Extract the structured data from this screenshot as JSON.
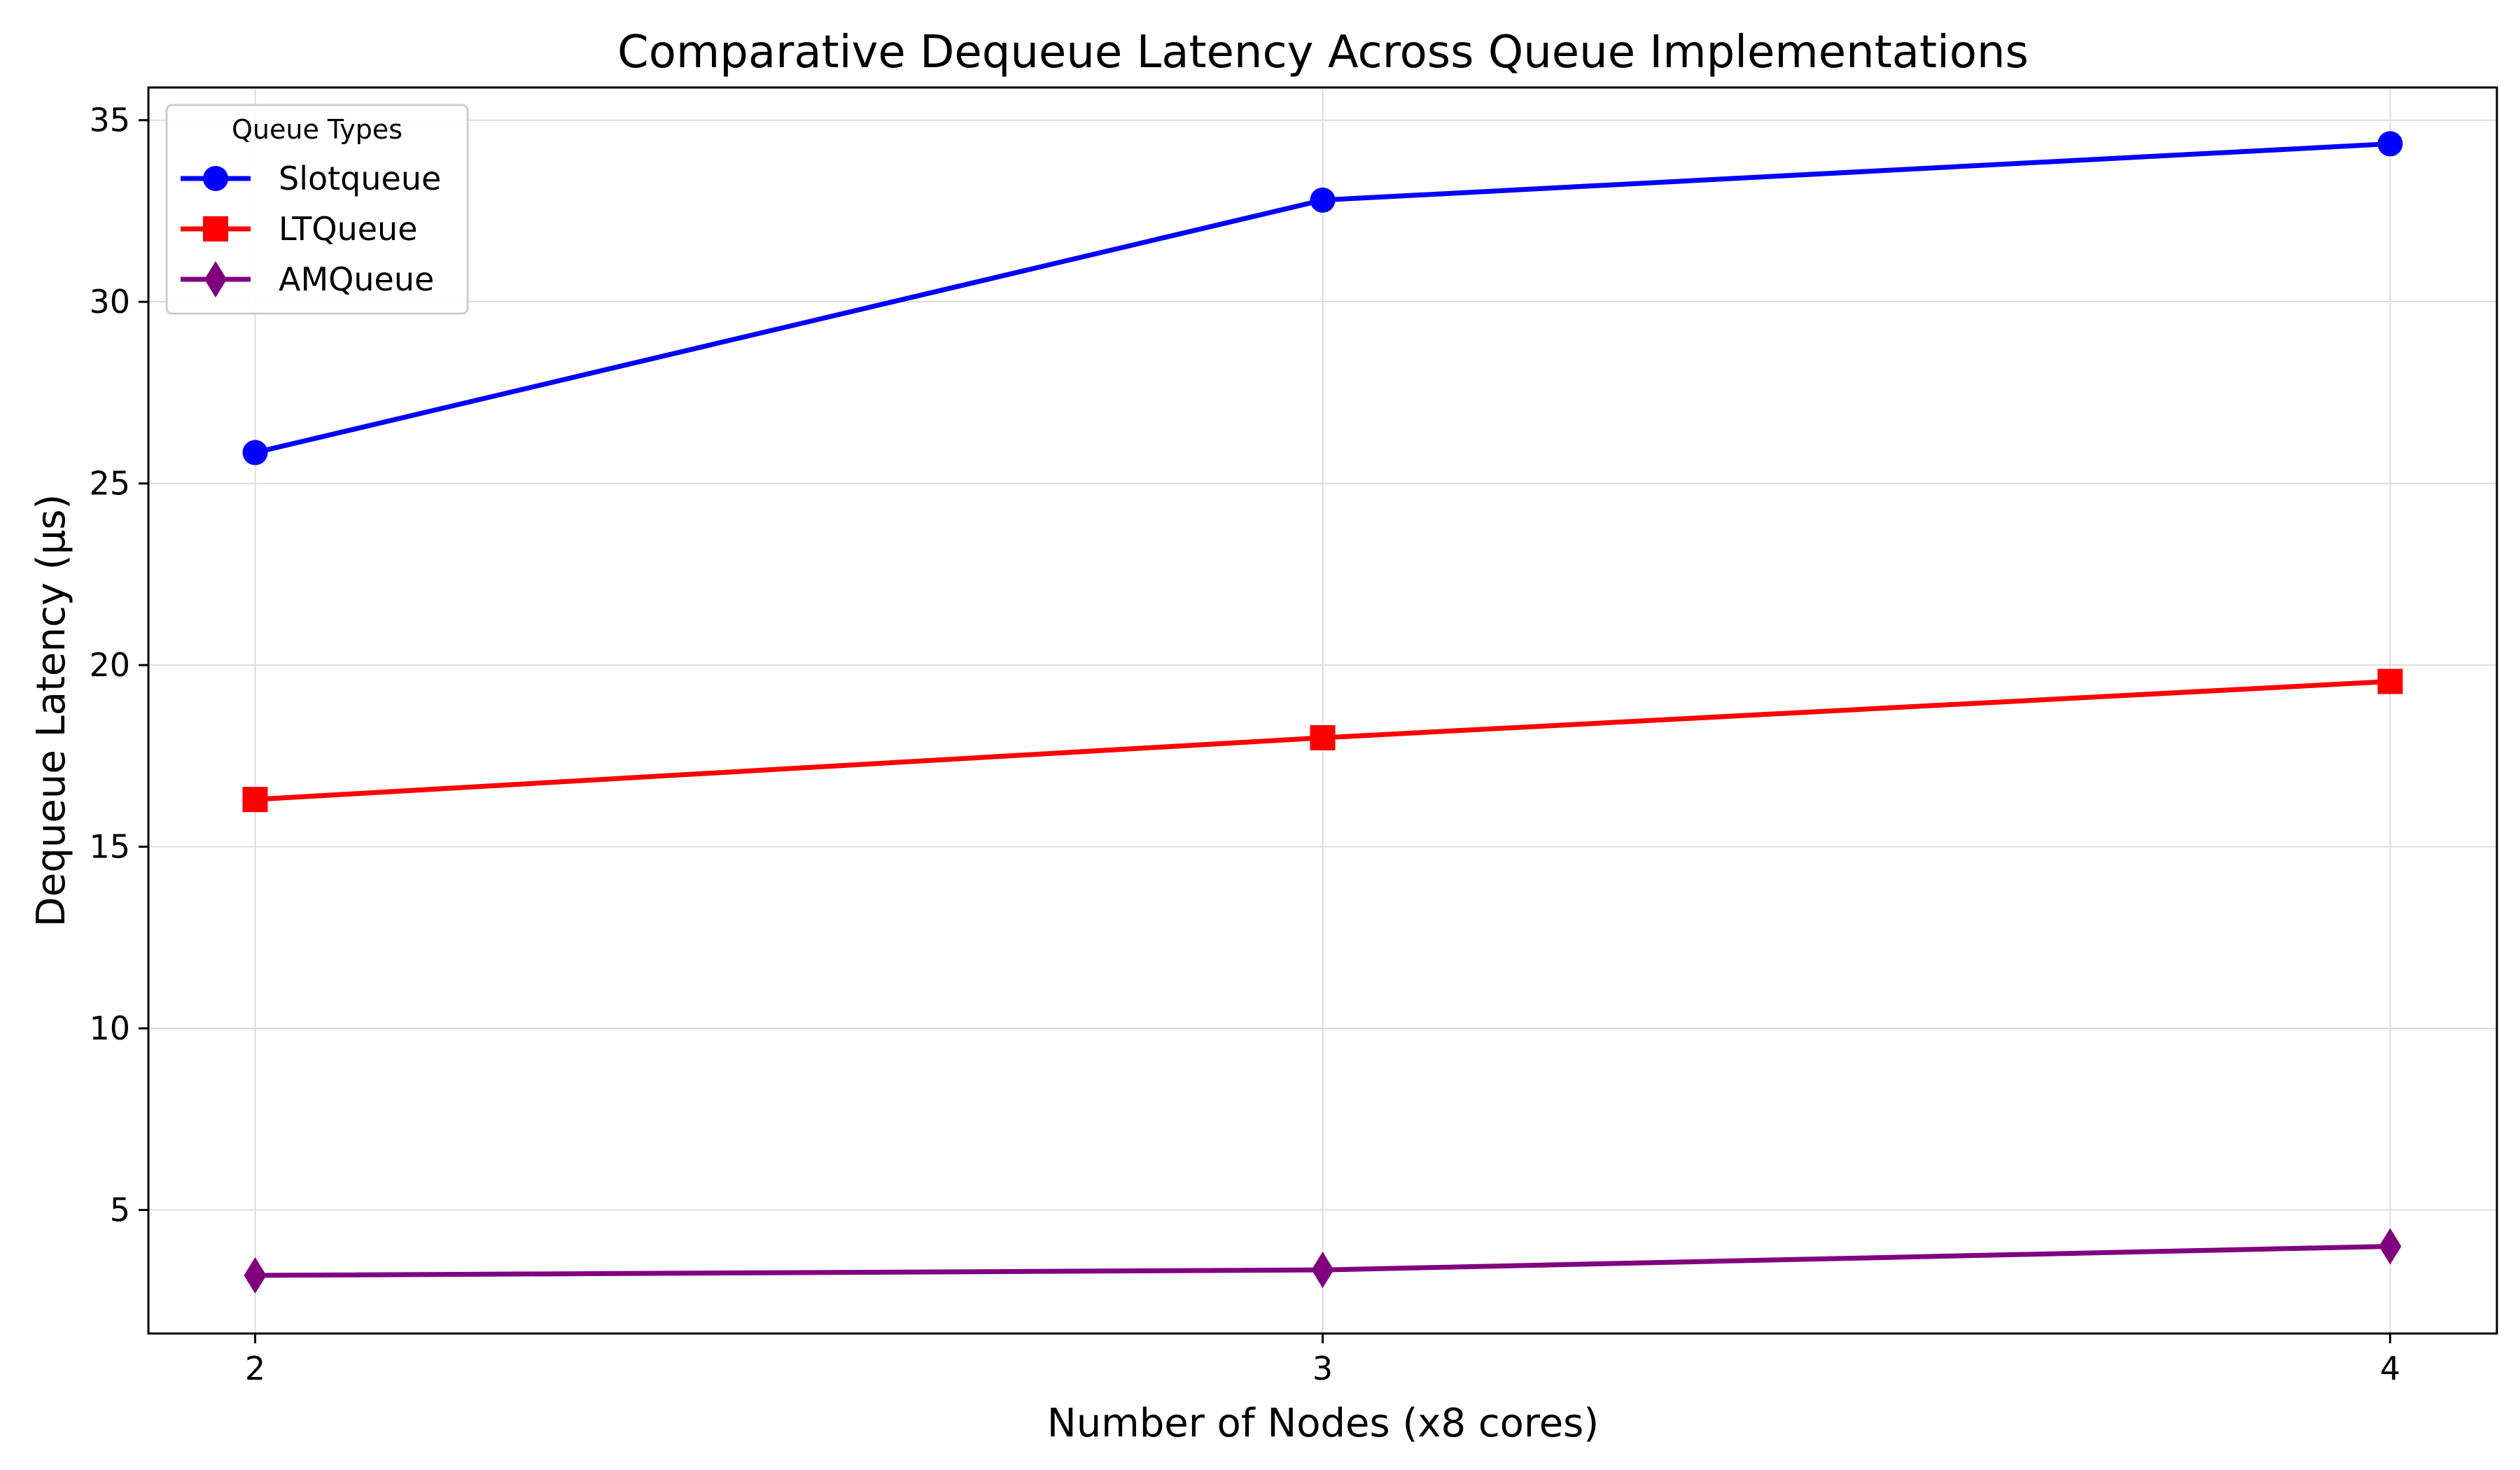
{
  "chart_data": {
    "type": "line",
    "title": "Comparative Dequeue Latency Across Queue Implementations",
    "xlabel": "Number of Nodes (x8 cores)",
    "ylabel": "Dequeue Latency (μs)",
    "x": [
      2,
      3,
      4
    ],
    "x_tick_labels": [
      "2",
      "3",
      "4"
    ],
    "xlim": [
      1.9,
      4.1
    ],
    "ylim": [
      1.6,
      35.9
    ],
    "y_ticks": [
      5,
      10,
      15,
      20,
      25,
      30,
      35
    ],
    "y_tick_labels": [
      "5",
      "10",
      "15",
      "20",
      "25",
      "30",
      "35"
    ],
    "grid": true,
    "legend": {
      "title": "Queue Types",
      "placement": "top-left"
    },
    "series": [
      {
        "name": "Slotqueue",
        "values": [
          25.85,
          32.8,
          34.35
        ],
        "color": "#0000ff",
        "marker": "circle"
      },
      {
        "name": "LTQueue",
        "values": [
          16.3,
          18.0,
          19.55
        ],
        "color": "#ff0000",
        "marker": "square"
      },
      {
        "name": "AMQueue",
        "values": [
          3.2,
          3.35,
          4.0
        ],
        "color": "#800080",
        "marker": "diamond"
      }
    ]
  }
}
